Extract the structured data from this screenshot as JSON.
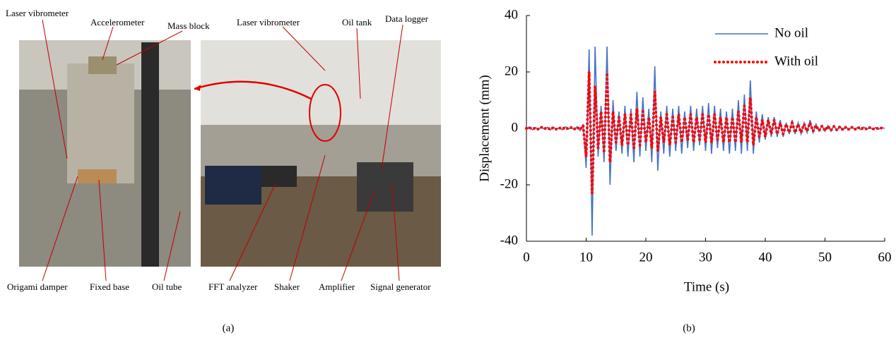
{
  "photo": {
    "top_labels": [
      "Laser vibrometer",
      "Accelerometer",
      "Mass block",
      "Laser vibrometer",
      "Oil tank",
      "Data logger"
    ],
    "bottom_labels": [
      "Origami damper",
      "Fixed base",
      "Oil tube",
      "FFT analyzer",
      "Shaker",
      "Amplifier",
      "Signal generator"
    ]
  },
  "captions": [
    "(a)",
    "(b)"
  ],
  "chart_data": {
    "type": "line",
    "xlabel": "Time (s)",
    "ylabel": "Displacement (mm)",
    "xlim": [
      0,
      60
    ],
    "ylim": [
      -40,
      40
    ],
    "xticks": [
      0,
      10,
      20,
      30,
      40,
      50,
      60
    ],
    "yticks": [
      -40,
      -20,
      0,
      20,
      40
    ],
    "grid": false,
    "legend": "upper right",
    "x": [
      0,
      0.5,
      1,
      1.5,
      2,
      2.5,
      3,
      3.5,
      4,
      4.5,
      5,
      5.5,
      6,
      6.5,
      7,
      7.5,
      8,
      8.5,
      9,
      9.5,
      10,
      10.5,
      11,
      11.5,
      12,
      12.5,
      13,
      13.5,
      14,
      14.5,
      15,
      15.5,
      16,
      16.5,
      17,
      17.5,
      18,
      18.5,
      19,
      19.5,
      20,
      20.5,
      21,
      21.5,
      22,
      22.5,
      23,
      23.5,
      24,
      24.5,
      25,
      25.5,
      26,
      26.5,
      27,
      27.5,
      28,
      28.5,
      29,
      29.5,
      30,
      30.5,
      31,
      31.5,
      32,
      32.5,
      33,
      33.5,
      34,
      34.5,
      35,
      35.5,
      36,
      36.5,
      37,
      37.5,
      38,
      38.5,
      39,
      39.5,
      40,
      40.5,
      41,
      41.5,
      42,
      42.5,
      43,
      43.5,
      44,
      44.5,
      45,
      45.5,
      46,
      46.5,
      47,
      47.5,
      48,
      48.5,
      49,
      49.5,
      50,
      50.5,
      51,
      51.5,
      52,
      52.5,
      53,
      53.5,
      54,
      54.5,
      55,
      55.5,
      56,
      56.5,
      57,
      57.5,
      58,
      58.5,
      59,
      59.5,
      60
    ],
    "series": [
      {
        "name": "No oil",
        "color": "#4472c4",
        "style": "solid",
        "values": [
          0,
          0.5,
          -0.5,
          0.3,
          -0.4,
          0.6,
          -0.3,
          0.4,
          -0.6,
          0.5,
          -0.4,
          0.3,
          -0.5,
          0.6,
          -0.3,
          0.4,
          -0.5,
          0.6,
          -0.8,
          1.5,
          -14,
          28,
          -38,
          29,
          -10,
          8,
          -12,
          29,
          -20,
          10,
          -8,
          6,
          -9,
          8,
          -10,
          7,
          -12,
          13,
          -10,
          11,
          -8,
          7,
          -12,
          22,
          -15,
          6,
          -9,
          8,
          -10,
          7,
          -8,
          8,
          -9,
          6,
          -7,
          8,
          -8,
          7,
          -6,
          8,
          -8,
          9,
          -9,
          8,
          -7,
          7,
          -8,
          6,
          -9,
          7,
          -8,
          10,
          -9,
          12,
          -8,
          17,
          -9,
          6,
          -5,
          5,
          -4,
          4,
          -3,
          4,
          -3,
          3,
          -3,
          2,
          -2,
          3,
          -2,
          2,
          -2,
          2,
          -1.5,
          3,
          -1.5,
          1.5,
          -1,
          1,
          -1,
          1,
          -1,
          1,
          -0.8,
          0.8,
          -0.7,
          0.7,
          -0.6,
          0.6,
          -0.5,
          0.5,
          -0.5,
          0.5,
          -0.4,
          0.4,
          -0.4,
          0.3,
          -0.3,
          0.3,
          0
        ]
      },
      {
        "name": "With oil",
        "color": "#ff0000",
        "style": "dotted",
        "values": [
          0,
          0.3,
          -0.3,
          0.2,
          -0.3,
          0.4,
          -0.2,
          0.3,
          -0.4,
          0.3,
          -0.3,
          0.2,
          -0.3,
          0.4,
          -0.2,
          0.3,
          -0.3,
          0.4,
          -0.5,
          1,
          -10,
          20,
          -23,
          15,
          -7,
          6,
          -8,
          19,
          -12,
          6,
          -5,
          4,
          -6,
          5,
          -6,
          5,
          -7,
          7,
          -6,
          6,
          -5,
          4,
          -7,
          13,
          -8,
          4,
          -5,
          5,
          -6,
          4,
          -5,
          5,
          -5,
          4,
          -4,
          5,
          -5,
          4,
          -4,
          5,
          -5,
          5,
          -5,
          5,
          -4,
          4,
          -5,
          4,
          -5,
          4,
          -5,
          6,
          -5,
          8,
          -5,
          11,
          -6,
          4,
          -3,
          3,
          -3,
          3,
          -2,
          3,
          -2,
          2,
          -2,
          1.5,
          -1.5,
          2,
          -1.5,
          1.5,
          -1.5,
          1.5,
          -1,
          2,
          -1,
          1,
          -0.8,
          0.8,
          -0.8,
          0.8,
          -0.7,
          0.7,
          -0.6,
          0.6,
          -0.5,
          0.5,
          -0.4,
          0.4,
          -0.4,
          0.4,
          -0.3,
          0.3,
          -0.3,
          0.3,
          -0.3,
          0.2,
          -0.2,
          0.2,
          0
        ]
      }
    ]
  }
}
